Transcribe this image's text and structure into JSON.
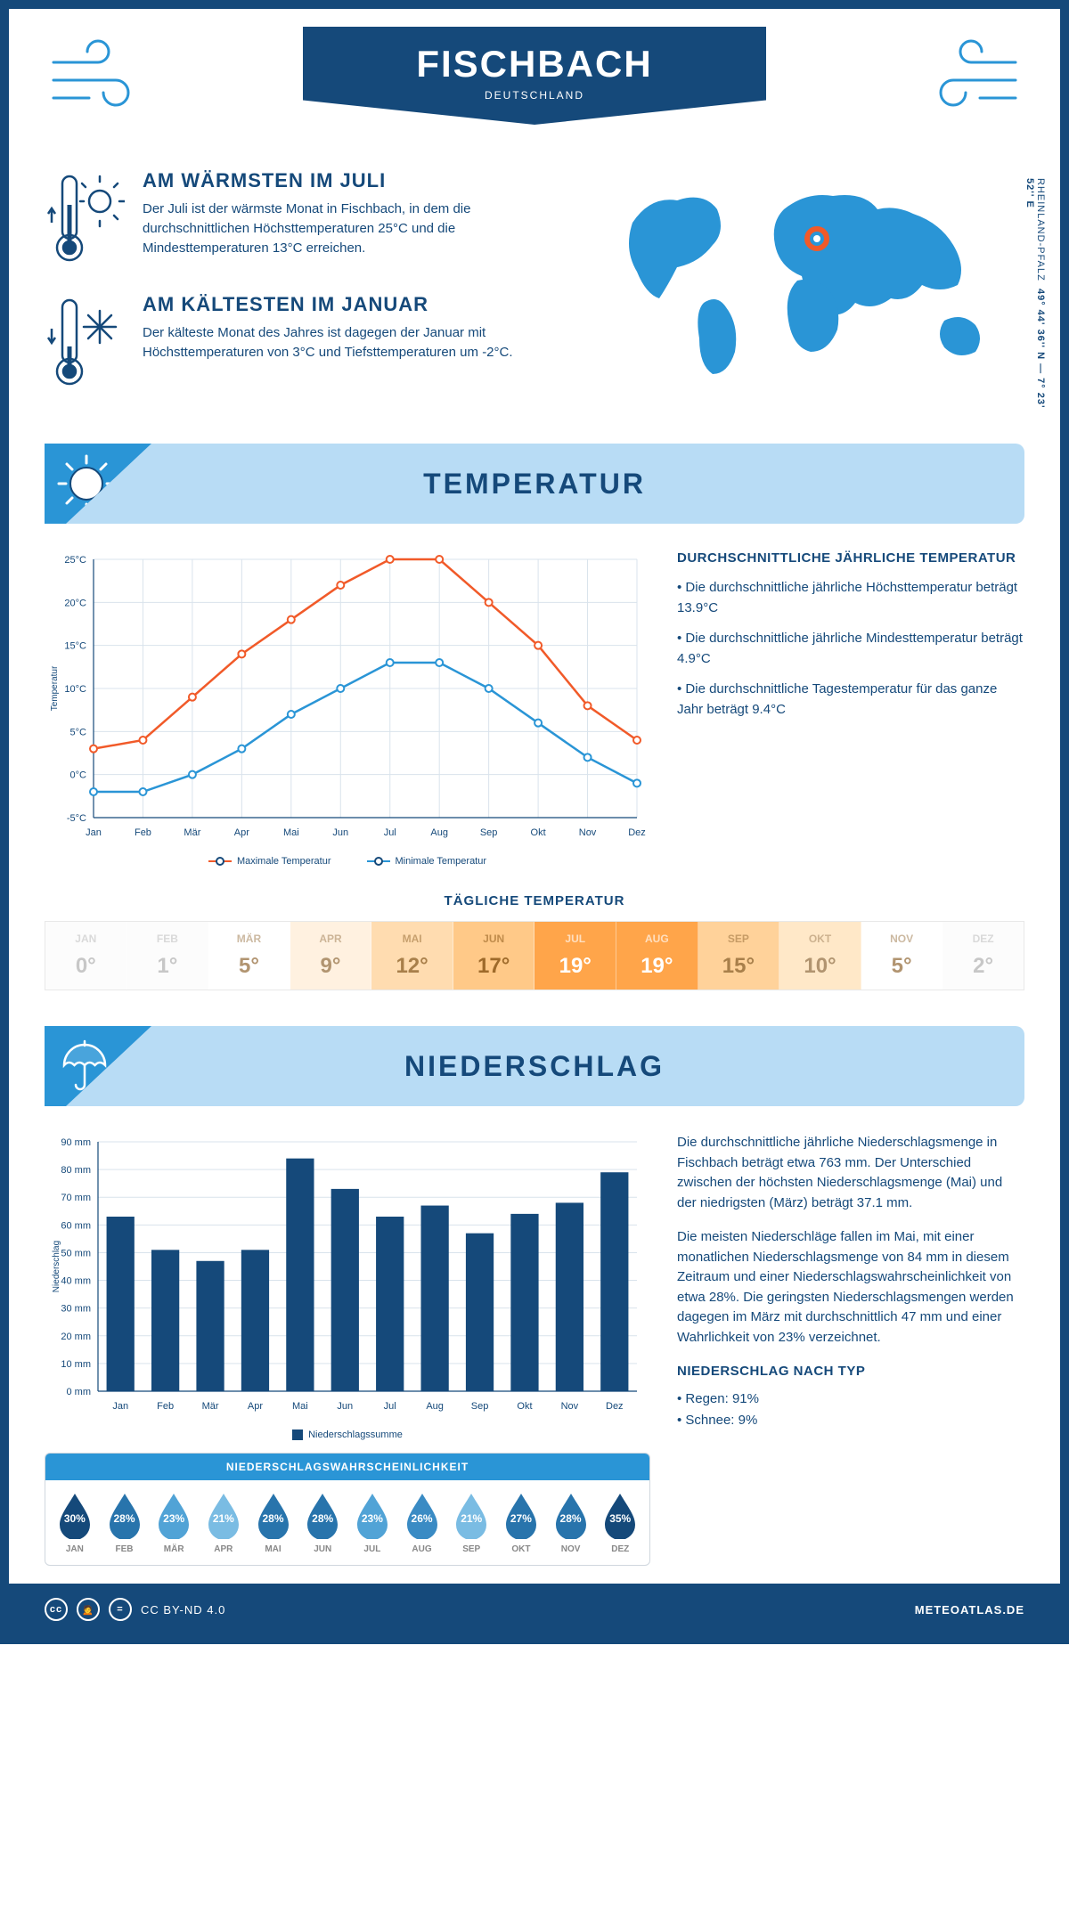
{
  "header": {
    "title": "FISCHBACH",
    "subtitle": "DEUTSCHLAND"
  },
  "coords": {
    "text": "49° 44' 36'' N — 7° 23' 52'' E",
    "region": "RHEINLAND-PFALZ"
  },
  "warmest": {
    "title": "AM WÄRMSTEN IM JULI",
    "text": "Der Juli ist der wärmste Monat in Fischbach, in dem die durchschnittlichen Höchsttemperaturen 25°C und die Mindesttemperaturen 13°C erreichen."
  },
  "coldest": {
    "title": "AM KÄLTESTEN IM JANUAR",
    "text": "Der kälteste Monat des Jahres ist dagegen der Januar mit Höchsttemperaturen von 3°C und Tiefsttemperaturen um -2°C."
  },
  "sections": {
    "temp": "TEMPERATUR",
    "precip": "NIEDERSCHLAG"
  },
  "temp_chart": {
    "months": [
      "Jan",
      "Feb",
      "Mär",
      "Apr",
      "Mai",
      "Jun",
      "Jul",
      "Aug",
      "Sep",
      "Okt",
      "Nov",
      "Dez"
    ],
    "max": [
      3,
      4,
      9,
      14,
      18,
      22,
      25,
      25,
      20,
      15,
      8,
      4
    ],
    "min": [
      -2,
      -2,
      0,
      3,
      7,
      10,
      13,
      13,
      10,
      6,
      2,
      -1
    ],
    "ylim": [
      -5,
      25
    ],
    "ytick_step": 5,
    "max_color": "#f15a29",
    "min_color": "#2a95d6",
    "grid_color": "#d9e3ec",
    "axis_color": "#15497a",
    "ylabel": "Temperatur",
    "legend_max": "Maximale Temperatur",
    "legend_min": "Minimale Temperatur"
  },
  "temp_text": {
    "heading": "DURCHSCHNITTLICHE JÄHRLICHE TEMPERATUR",
    "b1": "• Die durchschnittliche jährliche Höchsttemperatur beträgt 13.9°C",
    "b2": "• Die durchschnittliche jährliche Mindesttemperatur beträgt 4.9°C",
    "b3": "• Die durchschnittliche Tagestemperatur für das ganze Jahr beträgt 9.4°C"
  },
  "daily": {
    "heading": "TÄGLICHE TEMPERATUR",
    "months": [
      "JAN",
      "FEB",
      "MÄR",
      "APR",
      "MAI",
      "JUN",
      "JUL",
      "AUG",
      "SEP",
      "OKT",
      "NOV",
      "DEZ"
    ],
    "values": [
      "0°",
      "1°",
      "5°",
      "9°",
      "12°",
      "17°",
      "19°",
      "19°",
      "15°",
      "10°",
      "5°",
      "2°"
    ],
    "bg": [
      "#fcfcfc",
      "#fcfcfc",
      "#ffffff",
      "#fff1e0",
      "#ffdcb0",
      "#ffc988",
      "#ffa54a",
      "#ffa54a",
      "#ffd29a",
      "#ffe8c8",
      "#ffffff",
      "#fcfcfc"
    ],
    "fg": [
      "#c7c7c7",
      "#c7c7c7",
      "#b19470",
      "#b19470",
      "#a87f4a",
      "#9e6a2a",
      "#ffffff",
      "#ffffff",
      "#a87f4a",
      "#b19470",
      "#b19470",
      "#c7c7c7"
    ]
  },
  "precip_chart": {
    "months": [
      "Jan",
      "Feb",
      "Mär",
      "Apr",
      "Mai",
      "Jun",
      "Jul",
      "Aug",
      "Sep",
      "Okt",
      "Nov",
      "Dez"
    ],
    "values": [
      63,
      51,
      47,
      51,
      84,
      73,
      63,
      67,
      57,
      64,
      68,
      79
    ],
    "ylim": [
      0,
      90
    ],
    "ytick_step": 10,
    "bar_color": "#15497a",
    "grid_color": "#d9e3ec",
    "ylabel": "Niederschlag",
    "legend": "Niederschlagssumme"
  },
  "precip_text": {
    "p1": "Die durchschnittliche jährliche Niederschlagsmenge in Fischbach beträgt etwa 763 mm. Der Unterschied zwischen der höchsten Niederschlagsmenge (Mai) und der niedrigsten (März) beträgt 37.1 mm.",
    "p2": "Die meisten Niederschläge fallen im Mai, mit einer monatlichen Niederschlagsmenge von 84 mm in diesem Zeitraum und einer Niederschlagswahrscheinlichkeit von etwa 28%. Die geringsten Niederschlagsmengen werden dagegen im März mit durchschnittlich 47 mm und einer Wahrlichkeit von 23% verzeichnet.",
    "type_heading": "NIEDERSCHLAG NACH TYP",
    "type1": "• Regen: 91%",
    "type2": "• Schnee: 9%"
  },
  "prob": {
    "heading": "NIEDERSCHLAGSWAHRSCHEINLICHKEIT",
    "months": [
      "JAN",
      "FEB",
      "MÄR",
      "APR",
      "MAI",
      "JUN",
      "JUL",
      "AUG",
      "SEP",
      "OKT",
      "NOV",
      "DEZ"
    ],
    "values": [
      "30%",
      "28%",
      "23%",
      "21%",
      "28%",
      "28%",
      "23%",
      "26%",
      "21%",
      "27%",
      "28%",
      "35%"
    ],
    "colors": [
      "#15497a",
      "#2874ac",
      "#51a3d6",
      "#7abce3",
      "#2874ac",
      "#2874ac",
      "#51a3d6",
      "#3a8bc4",
      "#7abce3",
      "#2874ac",
      "#2874ac",
      "#15497a"
    ]
  },
  "footer": {
    "license": "CC BY-ND 4.0",
    "site": "METEOATLAS.DE"
  },
  "colors": {
    "primary": "#15497a",
    "accent": "#2a95d6",
    "light": "#b8dcf5"
  }
}
